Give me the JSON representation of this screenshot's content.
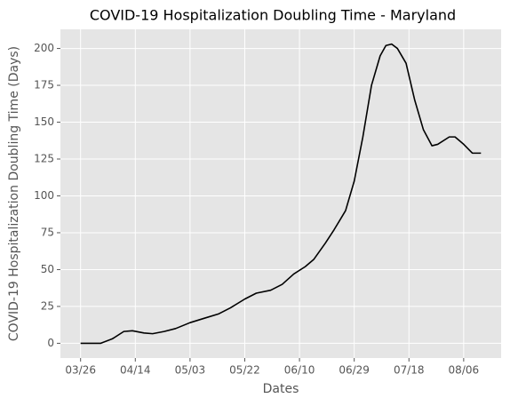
{
  "chart_data": {
    "type": "line",
    "title": "COVID-19 Hospitalization Doubling Time - Maryland",
    "x_label": "Dates",
    "y_label": "COVID-19 Hospitalization Doubling Time (Days)",
    "x": [
      "03/26",
      "03/29",
      "04/02",
      "04/06",
      "04/10",
      "04/13",
      "04/17",
      "04/20",
      "04/24",
      "04/28",
      "05/03",
      "05/08",
      "05/13",
      "05/17",
      "05/22",
      "05/26",
      "05/31",
      "06/04",
      "06/08",
      "06/12",
      "06/15",
      "06/19",
      "06/22",
      "06/26",
      "06/29",
      "07/02",
      "07/05",
      "07/08",
      "07/10",
      "07/12",
      "07/14",
      "07/17",
      "07/20",
      "07/23",
      "07/26",
      "07/28",
      "08/01",
      "08/03",
      "08/06",
      "08/09",
      "08/12"
    ],
    "series": [
      {
        "name": "Doubling Time",
        "color": "#000000",
        "values": [
          0,
          0,
          0,
          3,
          8,
          8.5,
          7,
          6.5,
          8,
          10,
          14,
          17,
          20,
          24,
          30,
          34,
          36,
          40,
          47,
          52,
          57,
          68,
          77,
          90,
          110,
          140,
          175,
          195,
          202,
          203,
          200,
          190,
          165,
          145,
          134,
          135,
          140,
          140,
          135,
          129,
          129
        ]
      }
    ],
    "xlim": [
      "03/19",
      "08/19"
    ],
    "xticks": [
      "03/26",
      "04/14",
      "05/03",
      "05/22",
      "06/10",
      "06/29",
      "07/18",
      "08/06"
    ],
    "ylim": [
      -10,
      213
    ],
    "yticks": [
      0,
      25,
      50,
      75,
      100,
      125,
      150,
      175,
      200
    ],
    "grid": true
  }
}
